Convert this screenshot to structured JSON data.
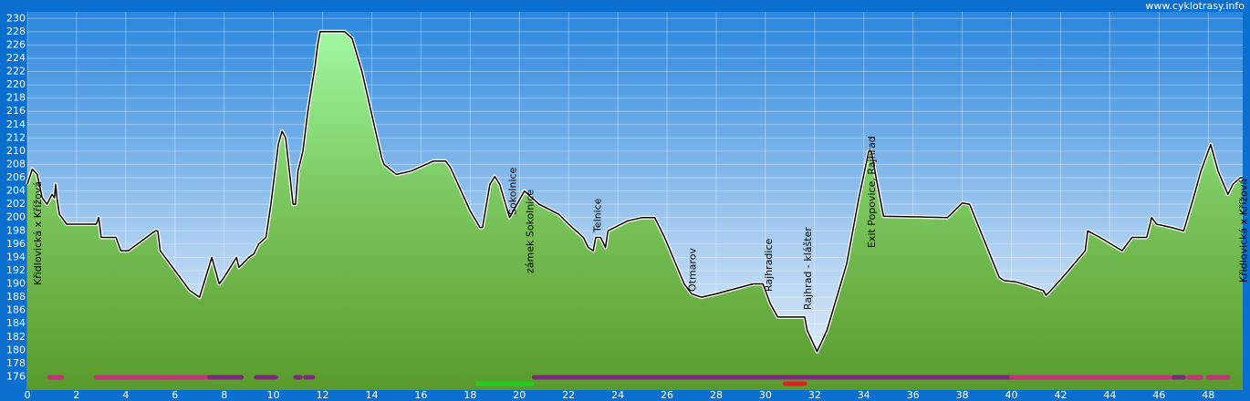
{
  "chart_data": {
    "type": "area",
    "watermark": "www.cyklotrasy.info",
    "x": [
      0,
      0.2,
      0.4,
      0.6,
      0.8,
      1.0,
      1.1,
      1.15,
      1.2,
      1.3,
      1.6,
      2.8,
      2.9,
      3.0,
      3.6,
      3.8,
      4.1,
      5.2,
      5.3,
      5.4,
      6.6,
      7.0,
      7.5,
      7.8,
      8.0,
      8.5,
      8.6,
      9.0,
      9.2,
      9.4,
      9.7,
      9.9,
      10.2,
      10.35,
      10.5,
      10.8,
      10.9,
      11.0,
      11.2,
      11.4,
      11.7,
      11.8,
      11.9,
      12.9,
      13.2,
      13.6,
      14.4,
      14.5,
      15.0,
      15.6,
      16.5,
      17.0,
      17.2,
      18.0,
      18.4,
      18.5,
      18.8,
      19.0,
      19.2,
      19.6,
      19.9,
      20.2,
      20.5,
      20.8,
      21.6,
      22.0,
      22.6,
      22.8,
      23.0,
      23.1,
      23.3,
      23.5,
      23.6,
      24.4,
      25.0,
      25.5,
      25.9,
      26.7,
      27.0,
      27.4,
      28.0,
      29.5,
      29.9,
      30.2,
      30.5,
      31.6,
      31.7,
      32.1,
      32.5,
      33.3,
      33.8,
      34.2,
      34.3,
      34.5,
      34.8,
      37.4,
      38.0,
      38.3,
      39.5,
      39.7,
      40.2,
      41.3,
      41.4,
      41.6,
      42.2,
      43.0,
      43.1,
      43.6,
      44.5,
      44.9,
      45.5,
      45.7,
      45.9,
      46.5,
      47.0,
      47.4,
      47.7,
      48.1,
      48.4,
      48.8,
      49.0,
      49.3,
      49.4
    ],
    "values": [
      205,
      207.3,
      206.5,
      203,
      202,
      203.5,
      203,
      205,
      203,
      200.5,
      199,
      199,
      200,
      197,
      197,
      195,
      195,
      198,
      198,
      195,
      189,
      188,
      194,
      190,
      191,
      194,
      192.5,
      194,
      194.5,
      196,
      197,
      202,
      211,
      213,
      212,
      202,
      202,
      207,
      210,
      216,
      223,
      226,
      228,
      228,
      227,
      222,
      209,
      208,
      206.5,
      207,
      208.5,
      208.5,
      207.5,
      201,
      198.5,
      198.5,
      205,
      206.2,
      205,
      200,
      202,
      204,
      203,
      202,
      200.5,
      199,
      197,
      195.5,
      195,
      197,
      197,
      195.5,
      198,
      199.5,
      200,
      200,
      197,
      190,
      188.5,
      188,
      188.5,
      190,
      190,
      187,
      185,
      185,
      183,
      179.8,
      183,
      193,
      203,
      210,
      210,
      206,
      200.2,
      200,
      202.2,
      202,
      191,
      190.5,
      190.3,
      189,
      188.3,
      189,
      191.5,
      195,
      198,
      197,
      195,
      197,
      197,
      200,
      199,
      198.5,
      198,
      203,
      207,
      211,
      207,
      203.5,
      205,
      206,
      206
    ],
    "xlim": [
      0,
      49.4
    ],
    "ylim": [
      174,
      231
    ],
    "xticks": [
      0,
      2,
      4,
      6,
      8,
      10,
      12,
      14,
      16,
      18,
      20,
      22,
      24,
      26,
      28,
      30,
      32,
      34,
      36,
      38,
      40,
      42,
      44,
      46,
      48
    ],
    "yticks": [
      176,
      178,
      180,
      182,
      184,
      186,
      188,
      190,
      192,
      194,
      196,
      198,
      200,
      202,
      204,
      206,
      208,
      210,
      212,
      214,
      216,
      218,
      220,
      222,
      224,
      226,
      228,
      230
    ],
    "grid": true,
    "color": "#000000",
    "annotations": [
      {
        "text": "Křidlovická x Křížová",
        "x": 0.3
      },
      {
        "text": "Sokolnice",
        "x": 19.6
      },
      {
        "text": "zámek Sokolnice",
        "x": 20.3
      },
      {
        "text": "Telnice",
        "x": 23.05
      },
      {
        "text": "Otmarov",
        "x": 26.9
      },
      {
        "text": "Rajhradice",
        "x": 30.0
      },
      {
        "text": "Rajhrad - klášter",
        "x": 31.6
      },
      {
        "text": "Exit Popovice, Rajhrad",
        "x": 34.2
      },
      {
        "text": "Křidlovická x Křížová",
        "x": 49.3
      }
    ],
    "surface_segments": [
      {
        "start": 0.9,
        "end": 1.4,
        "color": "#c8307a"
      },
      {
        "start": 2.8,
        "end": 7.4,
        "color": "#c8307a"
      },
      {
        "start": 7.4,
        "end": 8.7,
        "color": "#7b2a7b"
      },
      {
        "start": 9.3,
        "end": 10.1,
        "color": "#7b2a7b"
      },
      {
        "start": 10.9,
        "end": 11.1,
        "color": "#7b2a7b"
      },
      {
        "start": 11.3,
        "end": 11.6,
        "color": "#7b2a7b"
      },
      {
        "start": 18.3,
        "end": 20.5,
        "color": "#22cc22"
      },
      {
        "start": 20.6,
        "end": 40.0,
        "color": "#7b2a7b"
      },
      {
        "start": 30.8,
        "end": 31.6,
        "color": "#e02020"
      },
      {
        "start": 40.0,
        "end": 46.6,
        "color": "#c8307a"
      },
      {
        "start": 46.6,
        "end": 47.0,
        "color": "#7b2a7b"
      },
      {
        "start": 47.2,
        "end": 47.7,
        "color": "#c8307a"
      },
      {
        "start": 48.0,
        "end": 48.8,
        "color": "#c8307a"
      }
    ]
  }
}
